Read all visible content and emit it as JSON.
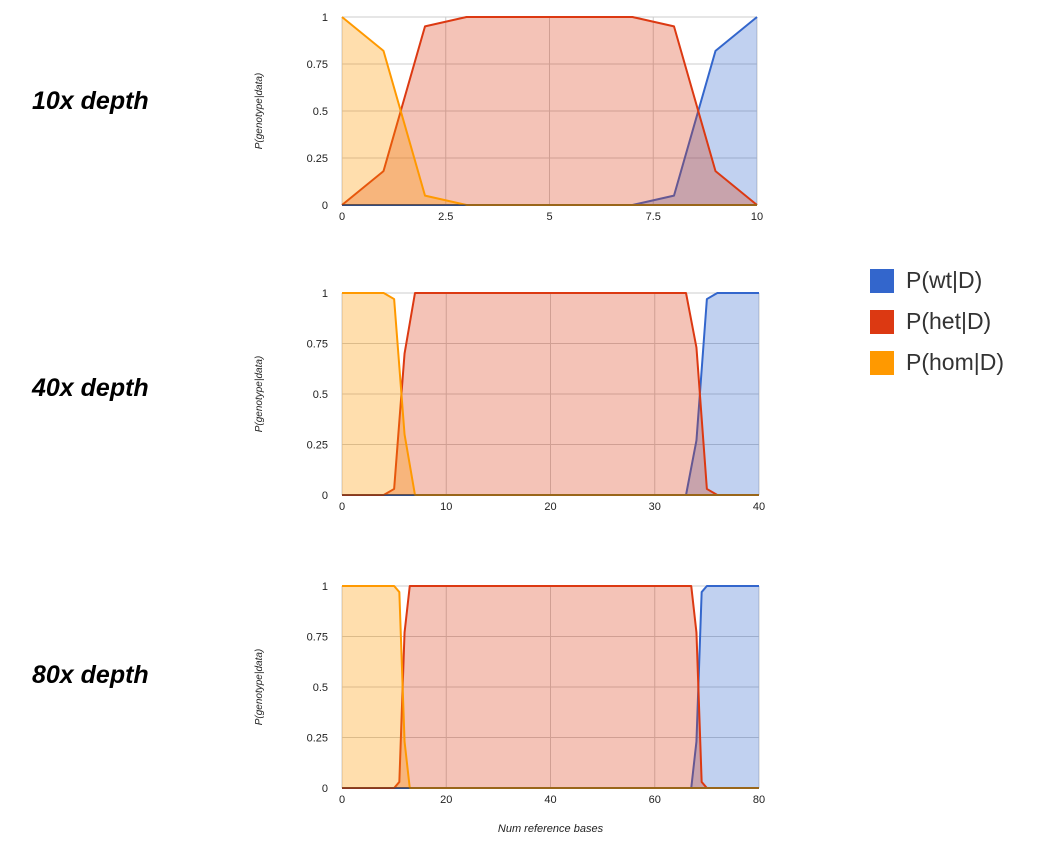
{
  "labels": {
    "depth_10": "10x depth",
    "depth_40": "40x depth",
    "depth_80": "80x depth"
  },
  "chart_data": [
    {
      "type": "area",
      "ylabel": "P(genotype|data)",
      "xlabel": "",
      "xlim": [
        0,
        10
      ],
      "ylim": [
        0,
        1
      ],
      "xticks": [
        0,
        2.5,
        5,
        7.5,
        10
      ],
      "xtick_labels": [
        "0",
        "2.5",
        "5",
        "7.5",
        "10"
      ],
      "yticks": [
        0,
        0.25,
        0.5,
        0.75,
        1
      ],
      "ytick_labels": [
        "0",
        "0.25",
        "0.5",
        "0.75",
        "1"
      ],
      "grid": true,
      "series": [
        {
          "name": "P(wt|D)",
          "color": "#3366cc",
          "x": [
            0,
            1,
            2,
            3,
            4,
            5,
            6,
            7,
            8,
            9,
            10
          ],
          "values": [
            0,
            0,
            0,
            0,
            0,
            0,
            0,
            0,
            0.05,
            0.82,
            1
          ]
        },
        {
          "name": "P(het|D)",
          "color": "#dc3912",
          "x": [
            0,
            1,
            2,
            3,
            4,
            5,
            6,
            7,
            8,
            9,
            10
          ],
          "values": [
            0,
            0.18,
            0.95,
            1,
            1,
            1,
            1,
            1,
            0.95,
            0.18,
            0
          ]
        },
        {
          "name": "P(hom|D)",
          "color": "#ff9900",
          "x": [
            0,
            1,
            2,
            3,
            4,
            5,
            6,
            7,
            8,
            9,
            10
          ],
          "values": [
            1,
            0.82,
            0.05,
            0,
            0,
            0,
            0,
            0,
            0,
            0,
            0
          ]
        }
      ]
    },
    {
      "type": "area",
      "ylabel": "P(genotype|data)",
      "xlabel": "",
      "xlim": [
        0,
        40
      ],
      "ylim": [
        0,
        1
      ],
      "xticks": [
        0,
        10,
        20,
        30,
        40
      ],
      "xtick_labels": [
        "0",
        "10",
        "20",
        "30",
        "40"
      ],
      "yticks": [
        0,
        0.25,
        0.5,
        0.75,
        1
      ],
      "ytick_labels": [
        "0",
        "0.25",
        "0.5",
        "0.75",
        "1"
      ],
      "grid": true,
      "series": [
        {
          "name": "P(wt|D)",
          "color": "#3366cc",
          "x": [
            0,
            33,
            34,
            35,
            36,
            40
          ],
          "values": [
            0,
            0,
            0.27,
            0.97,
            1,
            1
          ]
        },
        {
          "name": "P(het|D)",
          "color": "#dc3912",
          "x": [
            0,
            4,
            5,
            6,
            7,
            33,
            34,
            35,
            36,
            40
          ],
          "values": [
            0,
            0,
            0.03,
            0.7,
            1,
            1,
            0.73,
            0.03,
            0,
            0
          ]
        },
        {
          "name": "P(hom|D)",
          "color": "#ff9900",
          "x": [
            0,
            4,
            5,
            6,
            7,
            40
          ],
          "values": [
            1,
            1,
            0.97,
            0.3,
            0,
            0
          ]
        }
      ]
    },
    {
      "type": "area",
      "ylabel": "P(genotype|data)",
      "xlabel": "Num reference bases",
      "xlim": [
        0,
        80
      ],
      "ylim": [
        0,
        1
      ],
      "xticks": [
        0,
        20,
        40,
        60,
        80
      ],
      "xtick_labels": [
        "0",
        "20",
        "40",
        "60",
        "80"
      ],
      "yticks": [
        0,
        0.25,
        0.5,
        0.75,
        1
      ],
      "ytick_labels": [
        "0",
        "0.25",
        "0.5",
        "0.75",
        "1"
      ],
      "grid": true,
      "series": [
        {
          "name": "P(wt|D)",
          "color": "#3366cc",
          "x": [
            0,
            67,
            68,
            69,
            70,
            80
          ],
          "values": [
            0,
            0,
            0.23,
            0.97,
            1,
            1
          ]
        },
        {
          "name": "P(het|D)",
          "color": "#dc3912",
          "x": [
            0,
            10,
            11,
            12,
            13,
            67,
            68,
            69,
            70,
            80
          ],
          "values": [
            0,
            0,
            0.03,
            0.77,
            1,
            1,
            0.77,
            0.03,
            0,
            0
          ]
        },
        {
          "name": "P(hom|D)",
          "color": "#ff9900",
          "x": [
            0,
            10,
            11,
            12,
            13,
            80
          ],
          "values": [
            1,
            1,
            0.97,
            0.23,
            0,
            0
          ]
        }
      ]
    }
  ],
  "legend": [
    {
      "label": "P(wt|D)",
      "color": "#3366cc",
      "icon": "swatch-blue"
    },
    {
      "label": "P(het|D)",
      "color": "#dc3912",
      "icon": "swatch-red"
    },
    {
      "label": "P(hom|D)",
      "color": "#ff9900",
      "icon": "swatch-orange"
    }
  ]
}
